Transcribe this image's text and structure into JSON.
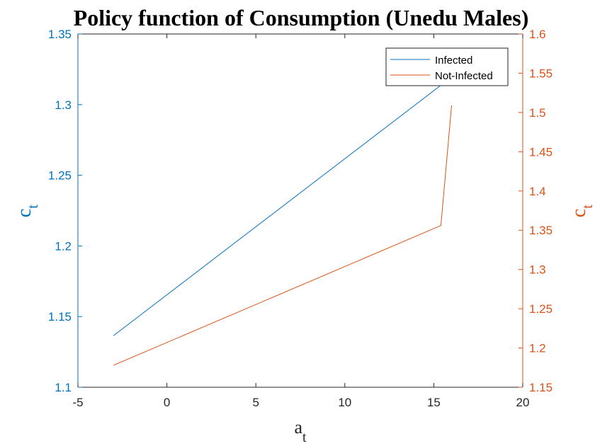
{
  "chart_data": {
    "type": "line",
    "title": "Policy function of Consumption (Unedu Males)",
    "xlabel": {
      "base": "a",
      "sub": "t"
    },
    "ylabel_left": {
      "base": "c",
      "sub": "t"
    },
    "ylabel_right": {
      "base": "c",
      "sub": "t"
    },
    "xlim": [
      -5,
      20
    ],
    "xticks": [
      -5,
      0,
      5,
      10,
      15,
      20
    ],
    "ylim_left": [
      1.1,
      1.35
    ],
    "yticks_left": [
      1.1,
      1.15,
      1.2,
      1.25,
      1.3,
      1.35
    ],
    "yticks_left_labels": [
      "1.1",
      "1.15",
      "1.2",
      "1.25",
      "1.3",
      "1.35"
    ],
    "ylim_right": [
      1.15,
      1.6
    ],
    "yticks_right": [
      1.15,
      1.2,
      1.25,
      1.3,
      1.35,
      1.4,
      1.45,
      1.5,
      1.55,
      1.6
    ],
    "yticks_right_labels": [
      "1.15",
      "1.2",
      "1.25",
      "1.3",
      "1.35",
      "1.4",
      "1.45",
      "1.5",
      "1.55",
      "1.6"
    ],
    "legend_position": "top-right",
    "grid": false,
    "series": [
      {
        "name": "Infected",
        "axis": "left",
        "color": "#0072BD",
        "x": [
          -3,
          16
        ],
        "y": [
          1.1365,
          1.3195
        ]
      },
      {
        "name": "Not-Infected",
        "axis": "right",
        "color": "#D95319",
        "x": [
          -3,
          15.4,
          16
        ],
        "y": [
          1.178,
          1.356,
          1.509
        ]
      }
    ]
  }
}
